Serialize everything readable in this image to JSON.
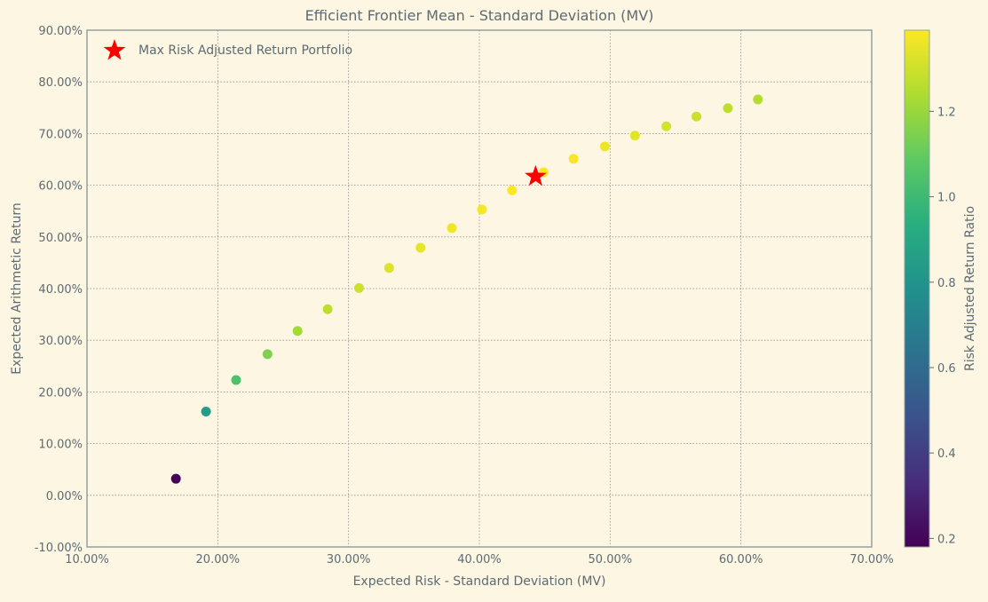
{
  "chart_data": {
    "type": "scatter",
    "title": "Efficient Frontier Mean - Standard Deviation (MV)",
    "xlabel": "Expected Risk - Standard Deviation (MV)",
    "ylabel": "Expected Arithmetic Return",
    "xlim": [
      0.1,
      0.7
    ],
    "ylim": [
      -0.1,
      0.9
    ],
    "x_ticks": [
      0.1,
      0.2,
      0.3,
      0.4,
      0.5,
      0.6,
      0.7
    ],
    "x_tick_labels": [
      "10.00%",
      "20.00%",
      "30.00%",
      "40.00%",
      "50.00%",
      "60.00%",
      "70.00%"
    ],
    "y_ticks": [
      -0.1,
      0.0,
      0.1,
      0.2,
      0.3,
      0.4,
      0.5,
      0.6,
      0.7,
      0.8,
      0.9
    ],
    "y_tick_labels": [
      "-10.00%",
      "0.00%",
      "10.00%",
      "20.00%",
      "30.00%",
      "40.00%",
      "50.00%",
      "60.00%",
      "70.00%",
      "80.00%",
      "90.00%"
    ],
    "grid": true,
    "legend": {
      "position": "top-left",
      "entries": [
        "Max Risk Adjusted Return Portfolio"
      ]
    },
    "colorbar": {
      "label": "Risk Adjusted Return Ratio",
      "range": [
        0.18,
        1.39
      ],
      "ticks": [
        0.2,
        0.4,
        0.6,
        0.8,
        1.0,
        1.2
      ],
      "tick_labels": [
        "0.2",
        "0.4",
        "0.6",
        "0.8",
        "1.0",
        "1.2"
      ],
      "colormap": "viridis"
    },
    "points": [
      {
        "x": 0.168,
        "y": 0.032,
        "ratio": 0.19
      },
      {
        "x": 0.191,
        "y": 0.162,
        "ratio": 0.85
      },
      {
        "x": 0.214,
        "y": 0.223,
        "ratio": 1.04
      },
      {
        "x": 0.238,
        "y": 0.273,
        "ratio": 1.15
      },
      {
        "x": 0.261,
        "y": 0.318,
        "ratio": 1.22
      },
      {
        "x": 0.284,
        "y": 0.36,
        "ratio": 1.27
      },
      {
        "x": 0.308,
        "y": 0.401,
        "ratio": 1.3
      },
      {
        "x": 0.331,
        "y": 0.44,
        "ratio": 1.33
      },
      {
        "x": 0.355,
        "y": 0.479,
        "ratio": 1.35
      },
      {
        "x": 0.379,
        "y": 0.517,
        "ratio": 1.365
      },
      {
        "x": 0.402,
        "y": 0.553,
        "ratio": 1.375
      },
      {
        "x": 0.425,
        "y": 0.59,
        "ratio": 1.385
      },
      {
        "x": 0.449,
        "y": 0.625,
        "ratio": 1.39
      },
      {
        "x": 0.472,
        "y": 0.651,
        "ratio": 1.38
      },
      {
        "x": 0.496,
        "y": 0.675,
        "ratio": 1.36
      },
      {
        "x": 0.519,
        "y": 0.696,
        "ratio": 1.34
      },
      {
        "x": 0.543,
        "y": 0.714,
        "ratio": 1.315
      },
      {
        "x": 0.566,
        "y": 0.733,
        "ratio": 1.295
      },
      {
        "x": 0.59,
        "y": 0.749,
        "ratio": 1.27
      },
      {
        "x": 0.613,
        "y": 0.766,
        "ratio": 1.25
      }
    ],
    "highlight": {
      "name": "Max Risk Adjusted Return Portfolio",
      "x": 0.443,
      "y": 0.617,
      "color": "#ff0000",
      "marker": "star"
    }
  }
}
